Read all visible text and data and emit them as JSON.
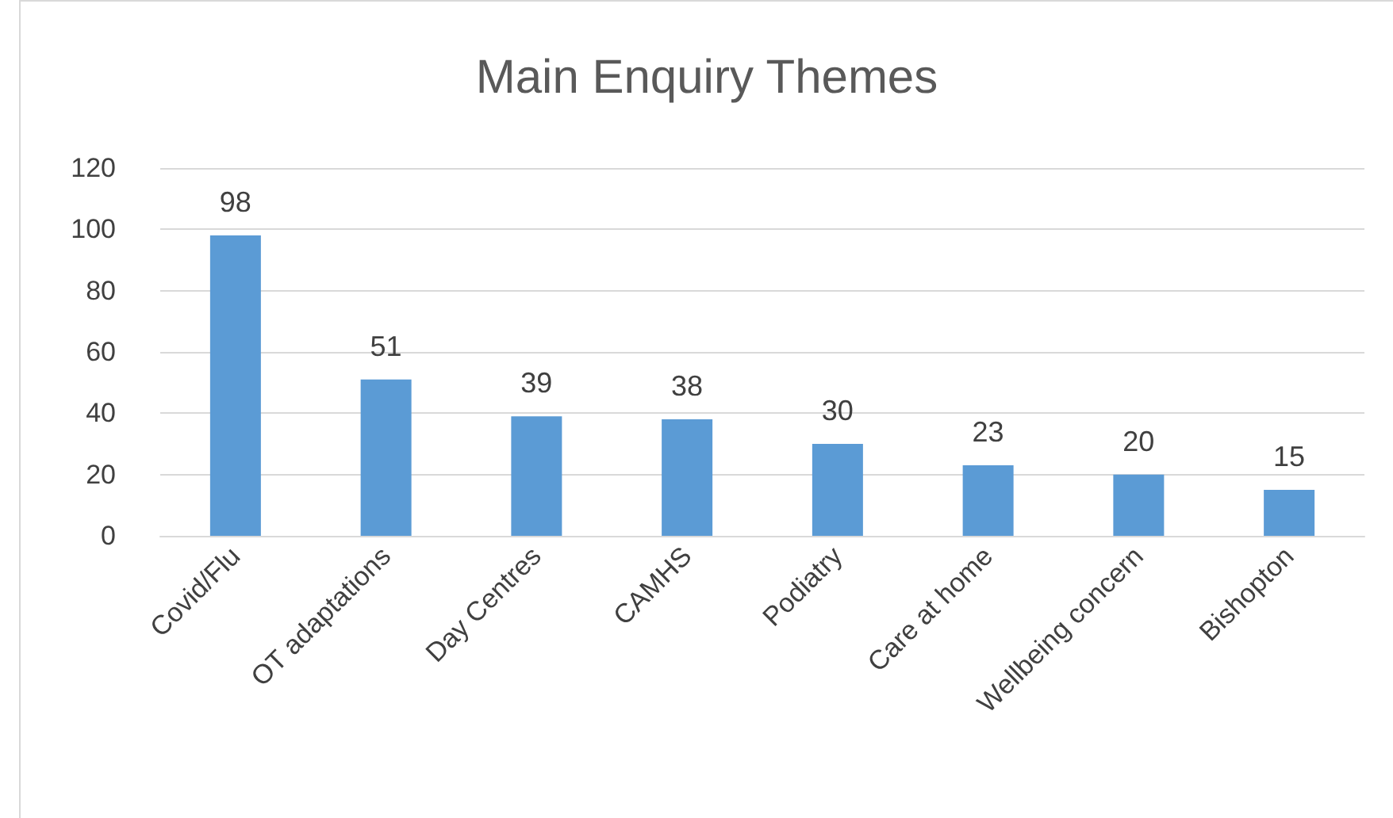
{
  "chart_data": {
    "type": "bar",
    "title": "Main Enquiry Themes",
    "categories": [
      "Covid/Flu",
      "OT adaptations",
      "Day Centres",
      "CAMHS",
      "Podiatry",
      "Care at home",
      "Wellbeing concern",
      "Bishopton"
    ],
    "values": [
      98,
      51,
      39,
      38,
      30,
      23,
      20,
      15
    ],
    "color": "#5b9bd5",
    "ylim": [
      0,
      120
    ],
    "yticks": [
      0,
      20,
      40,
      60,
      80,
      100,
      120
    ],
    "grid": "y",
    "data_labels": true
  }
}
